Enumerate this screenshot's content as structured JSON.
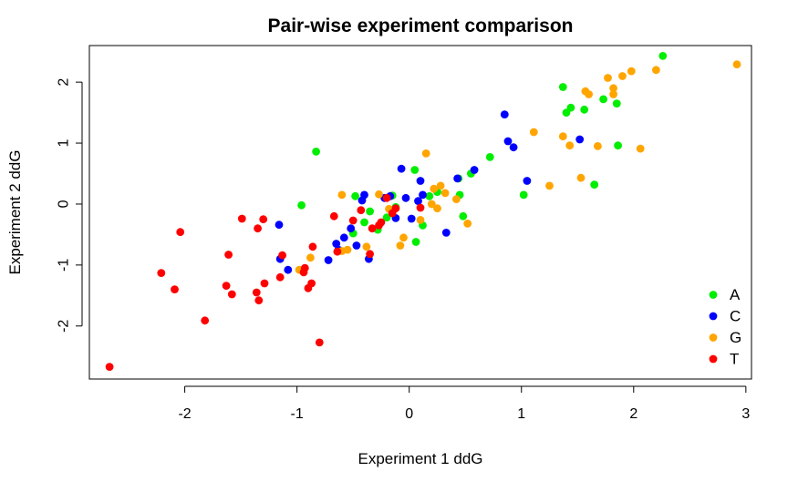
{
  "chart_data": {
    "type": "scatter",
    "title": "Pair-wise experiment comparison",
    "xlabel": "Experiment 1 ddG",
    "ylabel": "Experiment 2 ddG",
    "xlim": [
      -2.85,
      3.05
    ],
    "ylim": [
      -2.87,
      2.6
    ],
    "xticks": [
      -2,
      -1,
      0,
      1,
      2,
      3
    ],
    "yticks": [
      -2,
      -1,
      0,
      1,
      2
    ],
    "xtick_labels": [
      "-2",
      "-1",
      "0",
      "1",
      "2",
      "3"
    ],
    "ytick_labels": [
      "-2",
      "-1",
      "0",
      "1",
      "2"
    ],
    "legend_position": "bottom-right",
    "series": [
      {
        "name": "A",
        "color": "#00ee00",
        "points": [
          [
            -0.83,
            0.86
          ],
          [
            -0.96,
            -0.02
          ],
          [
            -0.48,
            0.13
          ],
          [
            -0.35,
            -0.12
          ],
          [
            -0.28,
            -0.42
          ],
          [
            -0.15,
            0.14
          ],
          [
            -0.12,
            -0.05
          ],
          [
            0.05,
            0.56
          ],
          [
            0.06,
            -0.62
          ],
          [
            0.12,
            -0.35
          ],
          [
            0.18,
            0.13
          ],
          [
            0.25,
            0.2
          ],
          [
            0.44,
            0.42
          ],
          [
            0.55,
            0.5
          ],
          [
            0.72,
            0.77
          ],
          [
            1.02,
            0.15
          ],
          [
            1.37,
            1.92
          ],
          [
            1.4,
            1.5
          ],
          [
            1.44,
            1.58
          ],
          [
            1.56,
            1.55
          ],
          [
            1.65,
            0.32
          ],
          [
            1.73,
            1.72
          ],
          [
            1.85,
            1.65
          ],
          [
            1.86,
            0.96
          ],
          [
            2.26,
            2.43
          ],
          [
            -0.5,
            -0.48
          ],
          [
            -0.4,
            -0.3
          ],
          [
            0.45,
            0.15
          ],
          [
            0.48,
            -0.2
          ],
          [
            -0.2,
            -0.22
          ]
        ]
      },
      {
        "name": "C",
        "color": "#0000ff",
        "points": [
          [
            -1.16,
            -0.34
          ],
          [
            -1.15,
            -0.9
          ],
          [
            -1.08,
            -1.08
          ],
          [
            -0.72,
            -0.92
          ],
          [
            -0.63,
            -0.75
          ],
          [
            -0.58,
            -0.55
          ],
          [
            -0.52,
            -0.4
          ],
          [
            -0.47,
            -0.68
          ],
          [
            -0.42,
            0.06
          ],
          [
            -0.4,
            0.15
          ],
          [
            -0.36,
            -0.9
          ],
          [
            -0.22,
            0.1
          ],
          [
            -0.17,
            0.13
          ],
          [
            -0.07,
            0.58
          ],
          [
            -0.03,
            0.1
          ],
          [
            0.02,
            -0.24
          ],
          [
            0.1,
            0.38
          ],
          [
            0.12,
            0.15
          ],
          [
            0.33,
            -0.47
          ],
          [
            0.43,
            0.42
          ],
          [
            0.58,
            0.56
          ],
          [
            0.85,
            1.47
          ],
          [
            0.88,
            1.03
          ],
          [
            0.93,
            0.93
          ],
          [
            1.05,
            0.38
          ],
          [
            1.52,
            1.06
          ],
          [
            -0.65,
            -0.65
          ],
          [
            -0.12,
            -0.23
          ],
          [
            0.08,
            0.05
          ]
        ]
      },
      {
        "name": "G",
        "color": "#ffa500",
        "points": [
          [
            -0.98,
            -1.08
          ],
          [
            -0.88,
            -0.88
          ],
          [
            -0.6,
            -0.77
          ],
          [
            -0.55,
            -0.75
          ],
          [
            -0.38,
            -0.7
          ],
          [
            -0.27,
            0.16
          ],
          [
            -0.18,
            -0.08
          ],
          [
            -0.08,
            -0.68
          ],
          [
            -0.05,
            -0.55
          ],
          [
            0.1,
            -0.26
          ],
          [
            0.15,
            0.83
          ],
          [
            0.22,
            0.25
          ],
          [
            0.25,
            -0.07
          ],
          [
            0.28,
            0.3
          ],
          [
            0.32,
            0.18
          ],
          [
            0.42,
            0.08
          ],
          [
            0.52,
            -0.32
          ],
          [
            1.11,
            1.18
          ],
          [
            1.25,
            0.3
          ],
          [
            1.37,
            1.11
          ],
          [
            1.43,
            0.96
          ],
          [
            1.53,
            0.43
          ],
          [
            1.57,
            1.85
          ],
          [
            1.6,
            1.8
          ],
          [
            1.68,
            0.95
          ],
          [
            1.77,
            2.07
          ],
          [
            1.82,
            1.9
          ],
          [
            1.82,
            1.8
          ],
          [
            1.9,
            2.1
          ],
          [
            1.98,
            2.18
          ],
          [
            2.06,
            0.91
          ],
          [
            2.2,
            2.2
          ],
          [
            2.92,
            2.29
          ],
          [
            -0.6,
            0.15
          ],
          [
            0.2,
            0.0
          ]
        ]
      },
      {
        "name": "T",
        "color": "#ff0000",
        "points": [
          [
            -2.67,
            -2.67
          ],
          [
            -2.21,
            -1.13
          ],
          [
            -2.09,
            -1.4
          ],
          [
            -2.04,
            -0.46
          ],
          [
            -1.82,
            -1.91
          ],
          [
            -1.63,
            -1.34
          ],
          [
            -1.61,
            -0.83
          ],
          [
            -1.58,
            -1.48
          ],
          [
            -1.49,
            -0.24
          ],
          [
            -1.36,
            -1.45
          ],
          [
            -1.35,
            -0.4
          ],
          [
            -1.34,
            -1.58
          ],
          [
            -1.3,
            -0.25
          ],
          [
            -1.29,
            -1.3
          ],
          [
            -1.15,
            -1.2
          ],
          [
            -1.13,
            -0.84
          ],
          [
            -0.94,
            -1.12
          ],
          [
            -0.93,
            -1.05
          ],
          [
            -0.9,
            -1.38
          ],
          [
            -0.87,
            -1.3
          ],
          [
            -0.86,
            -0.7
          ],
          [
            -0.8,
            -2.27
          ],
          [
            -0.67,
            -0.2
          ],
          [
            -0.64,
            -0.78
          ],
          [
            -0.5,
            -0.27
          ],
          [
            -0.35,
            -0.82
          ],
          [
            -0.33,
            -0.4
          ],
          [
            -0.27,
            -0.35
          ],
          [
            -0.2,
            0.1
          ],
          [
            -0.12,
            -0.07
          ],
          [
            0.1,
            -0.06
          ],
          [
            -0.43,
            -0.1
          ],
          [
            -0.25,
            -0.3
          ],
          [
            -0.15,
            -0.15
          ]
        ]
      }
    ]
  }
}
